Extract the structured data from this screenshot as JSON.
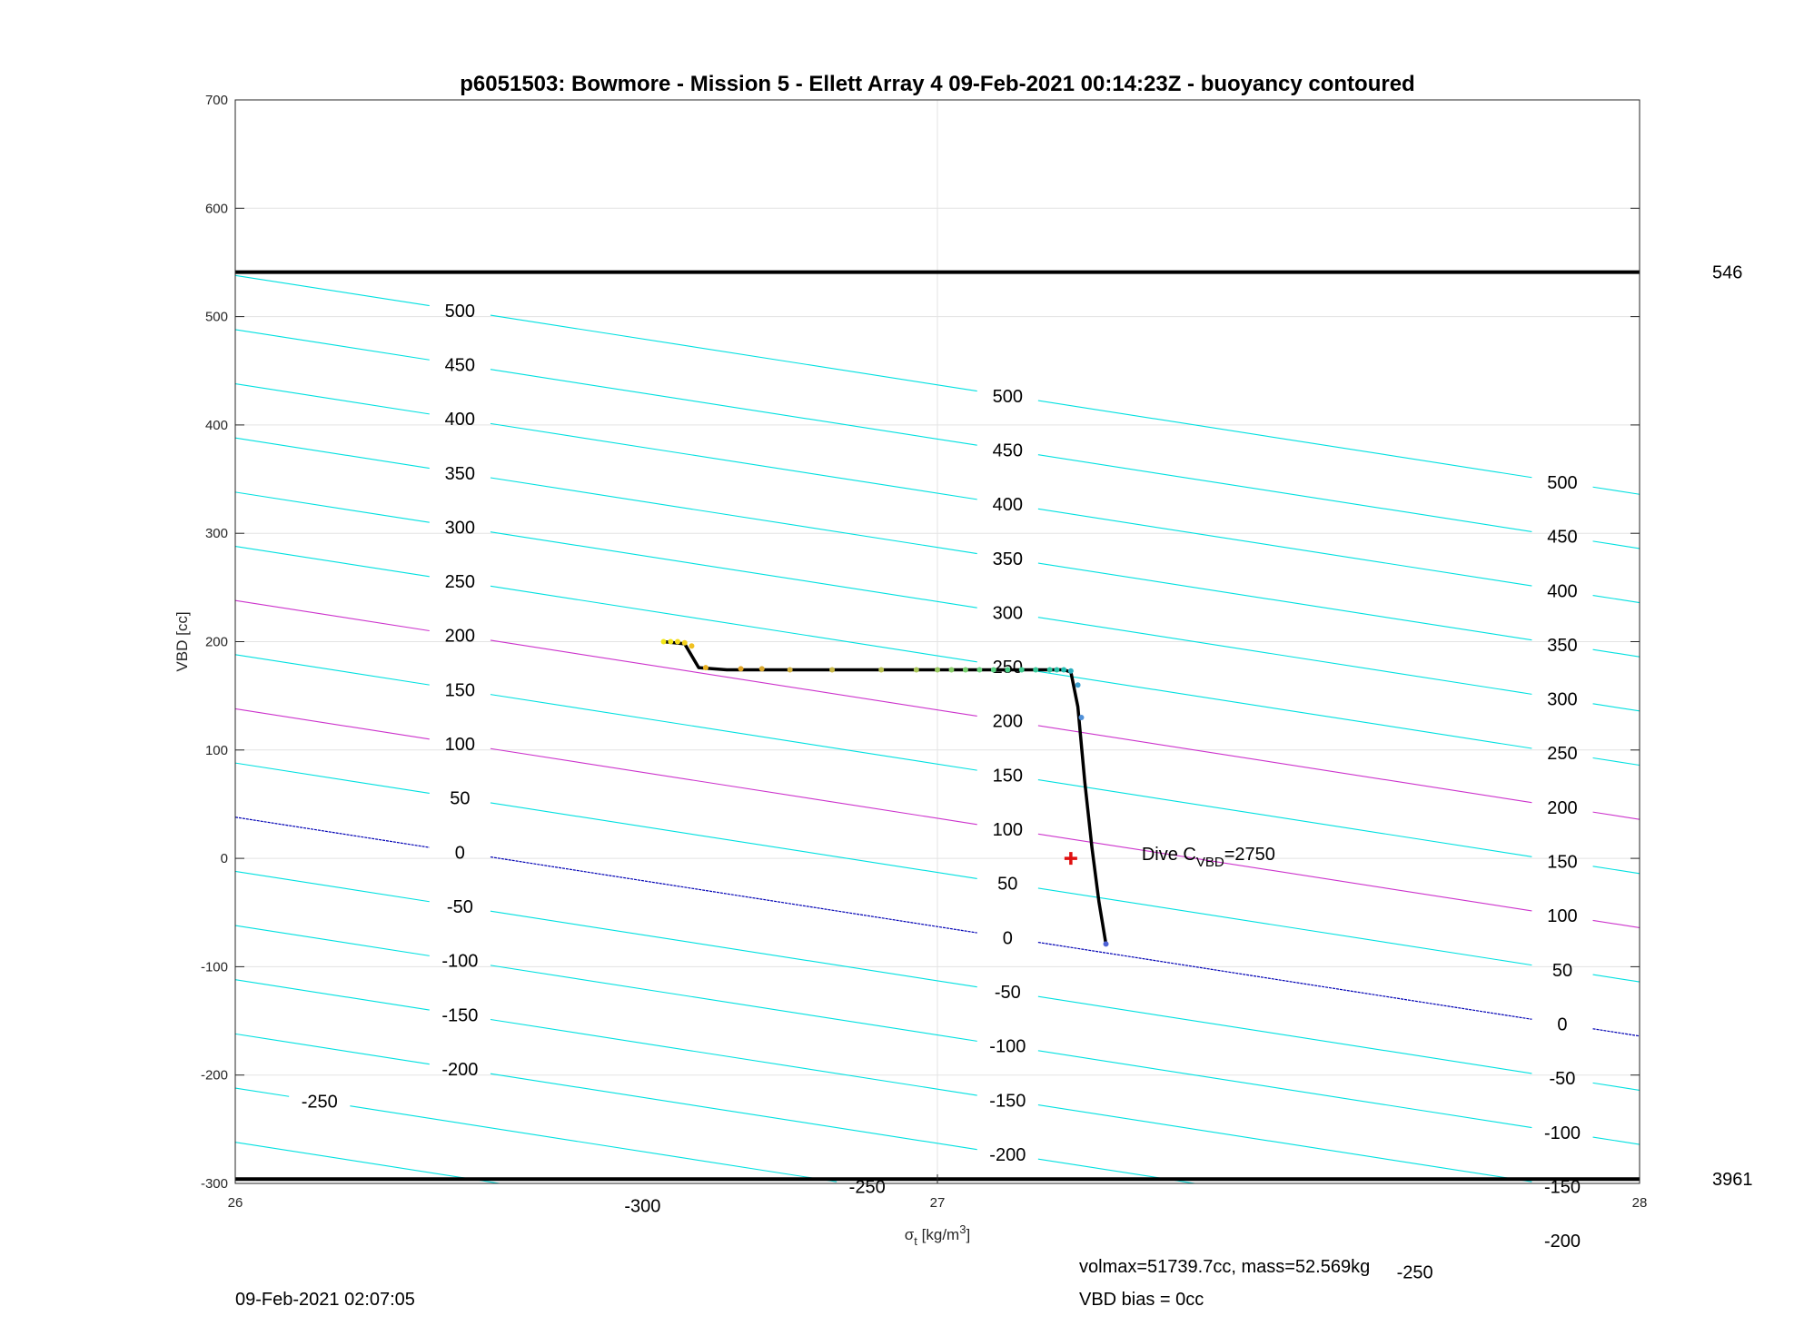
{
  "chart_data": {
    "type": "line",
    "title": "p6051503: Bowmore - Mission 5 - Ellett Array 4 09-Feb-2021 00:14:23Z - buoyancy contoured",
    "xlabel": {
      "symbol": "σ",
      "sub": "t",
      "unit": " [kg/m",
      "sup": "3",
      "close": "]"
    },
    "ylabel": "VBD [cc]",
    "xlim": [
      26,
      28
    ],
    "ylim": [
      -300,
      700
    ],
    "xticks": [
      26,
      27,
      28
    ],
    "xtick_labels": [
      "26",
      "27",
      "28"
    ],
    "yticks": [
      -300,
      -200,
      -100,
      0,
      100,
      200,
      300,
      400,
      500,
      600,
      700
    ],
    "ytick_labels": [
      "-300",
      "-200",
      "-100",
      "0",
      "100",
      "200",
      "300",
      "400",
      "500",
      "600",
      "700"
    ],
    "grid": true,
    "contour_slope_cc_per_kgm3": -101,
    "contours": [
      {
        "level": 500,
        "vbd_at_26": 538,
        "color": "#00e0e0",
        "labels": [
          {
            "x": 26.32,
            "text": "500"
          },
          {
            "x": 27.1,
            "text": "500"
          },
          {
            "x": 27.89,
            "text": "500"
          }
        ]
      },
      {
        "level": 450,
        "vbd_at_26": 488,
        "color": "#00e0e0",
        "labels": [
          {
            "x": 26.32,
            "text": "450"
          },
          {
            "x": 27.1,
            "text": "450"
          },
          {
            "x": 27.89,
            "text": "450"
          }
        ]
      },
      {
        "level": 400,
        "vbd_at_26": 438,
        "color": "#00e0e0",
        "labels": [
          {
            "x": 26.32,
            "text": "400"
          },
          {
            "x": 27.1,
            "text": "400"
          },
          {
            "x": 27.89,
            "text": "400"
          }
        ]
      },
      {
        "level": 350,
        "vbd_at_26": 388,
        "color": "#00e0e0",
        "labels": [
          {
            "x": 26.32,
            "text": "350"
          },
          {
            "x": 27.1,
            "text": "350"
          },
          {
            "x": 27.89,
            "text": "350"
          }
        ]
      },
      {
        "level": 300,
        "vbd_at_26": 338,
        "color": "#00e0e0",
        "labels": [
          {
            "x": 26.32,
            "text": "300"
          },
          {
            "x": 27.1,
            "text": "300"
          },
          {
            "x": 27.89,
            "text": "300"
          }
        ]
      },
      {
        "level": 250,
        "vbd_at_26": 288,
        "color": "#00e0e0",
        "labels": [
          {
            "x": 26.32,
            "text": "250"
          },
          {
            "x": 27.1,
            "text": "250"
          },
          {
            "x": 27.89,
            "text": "250"
          }
        ]
      },
      {
        "level": 200,
        "vbd_at_26": 238,
        "color": "#cc33cc",
        "labels": [
          {
            "x": 26.32,
            "text": "200"
          },
          {
            "x": 27.1,
            "text": "200"
          },
          {
            "x": 27.89,
            "text": "200"
          }
        ]
      },
      {
        "level": 150,
        "vbd_at_26": 188,
        "color": "#00e0e0",
        "labels": [
          {
            "x": 26.32,
            "text": "150"
          },
          {
            "x": 27.1,
            "text": "150"
          },
          {
            "x": 27.89,
            "text": "150"
          }
        ]
      },
      {
        "level": 100,
        "vbd_at_26": 138,
        "color": "#cc33cc",
        "labels": [
          {
            "x": 26.32,
            "text": "100"
          },
          {
            "x": 27.1,
            "text": "100"
          },
          {
            "x": 27.89,
            "text": "100"
          }
        ]
      },
      {
        "level": 50,
        "vbd_at_26": 88,
        "color": "#00e0e0",
        "labels": [
          {
            "x": 26.32,
            "text": "50"
          },
          {
            "x": 27.1,
            "text": "50"
          },
          {
            "x": 27.89,
            "text": "50"
          }
        ]
      },
      {
        "level": 0,
        "vbd_at_26": 38,
        "color": "#0000b4",
        "labels": [
          {
            "x": 26.32,
            "text": "0"
          },
          {
            "x": 27.1,
            "text": "0"
          },
          {
            "x": 27.89,
            "text": "0"
          }
        ]
      },
      {
        "level": -50,
        "vbd_at_26": -12,
        "color": "#00e0e0",
        "labels": [
          {
            "x": 26.32,
            "text": "-50"
          },
          {
            "x": 27.1,
            "text": "-50"
          },
          {
            "x": 27.89,
            "text": "-50"
          }
        ]
      },
      {
        "level": -100,
        "vbd_at_26": -62,
        "color": "#00e0e0",
        "labels": [
          {
            "x": 26.32,
            "text": "-100"
          },
          {
            "x": 27.1,
            "text": "-100"
          },
          {
            "x": 27.89,
            "text": "-100"
          }
        ]
      },
      {
        "level": -150,
        "vbd_at_26": -112,
        "color": "#00e0e0",
        "labels": [
          {
            "x": 26.32,
            "text": "-150"
          },
          {
            "x": 27.1,
            "text": "-150"
          },
          {
            "x": 27.89,
            "text": "-150"
          }
        ]
      },
      {
        "level": -200,
        "vbd_at_26": -162,
        "color": "#00e0e0",
        "labels": [
          {
            "x": 26.32,
            "text": "-200"
          },
          {
            "x": 27.1,
            "text": "-200"
          },
          {
            "x": 27.89,
            "text": "-200"
          }
        ]
      },
      {
        "level": -250,
        "vbd_at_26": -212,
        "color": "#00e0e0",
        "labels": [
          {
            "x": 26.12,
            "text": "-250"
          },
          {
            "x": 26.9,
            "text": "-250"
          },
          {
            "x": 27.68,
            "text": "-250"
          }
        ]
      },
      {
        "level": -300,
        "vbd_at_26": -262,
        "color": "#00e0e0",
        "labels": [
          {
            "x": 26.58,
            "text": "-300"
          }
        ]
      }
    ],
    "limit_lines": [
      {
        "vbd": 541,
        "label": "546",
        "color": "#000000"
      },
      {
        "vbd": -296,
        "label": "3961",
        "color": "#000000"
      }
    ],
    "dive_profile": {
      "color": "#000000",
      "x": [
        26.61,
        26.64,
        26.66,
        26.7,
        26.8,
        26.9,
        27.0,
        27.1,
        27.15,
        27.18,
        27.19,
        27.2,
        27.21,
        27.22,
        27.23,
        27.24
      ],
      "y": [
        200,
        198,
        176,
        174,
        174,
        174,
        174,
        174,
        174,
        174,
        172,
        140,
        70,
        10,
        -40,
        -79
      ]
    },
    "scatter_points": {
      "x": [
        26.61,
        26.62,
        26.63,
        26.64,
        26.65,
        26.67,
        26.72,
        26.75,
        26.79,
        26.85,
        26.92,
        26.97,
        27.0,
        27.02,
        27.04,
        27.06,
        27.08,
        27.1,
        27.12,
        27.14,
        27.16,
        27.17,
        27.18,
        27.19,
        27.2,
        27.205,
        27.24
      ],
      "y": [
        200,
        200,
        200,
        199,
        196,
        176,
        175,
        175,
        174,
        174,
        174,
        174,
        174,
        174,
        174,
        174,
        174,
        174,
        174,
        174,
        174,
        174,
        174,
        173,
        160,
        130,
        -79
      ],
      "colors": [
        "#f2e61a",
        "#f2e61a",
        "#f5dc1c",
        "#f5d21f",
        "#f0c020",
        "#e8b020",
        "#e0a428",
        "#d8a830",
        "#d0b040",
        "#c8b848",
        "#b8c050",
        "#a8c458",
        "#98c860",
        "#88cc68",
        "#78d070",
        "#68d078",
        "#58d080",
        "#48d088",
        "#40cc90",
        "#38c898",
        "#30c4a0",
        "#28c0a8",
        "#20bcb0",
        "#2ab0c0",
        "#40a0d0",
        "#5090d8",
        "#4f63d6"
      ]
    },
    "dive_marker": {
      "x": 27.19,
      "y": 0,
      "color": "#e01010",
      "label": "Dive C",
      "label_sub": "VBD",
      "label_value": "=2750"
    }
  },
  "footer": {
    "timestamp": "09-Feb-2021 02:07:05",
    "volmax_mass": "volmax=51739.7cc, mass=52.569kg",
    "vbd_bias": "VBD bias = 0cc"
  }
}
